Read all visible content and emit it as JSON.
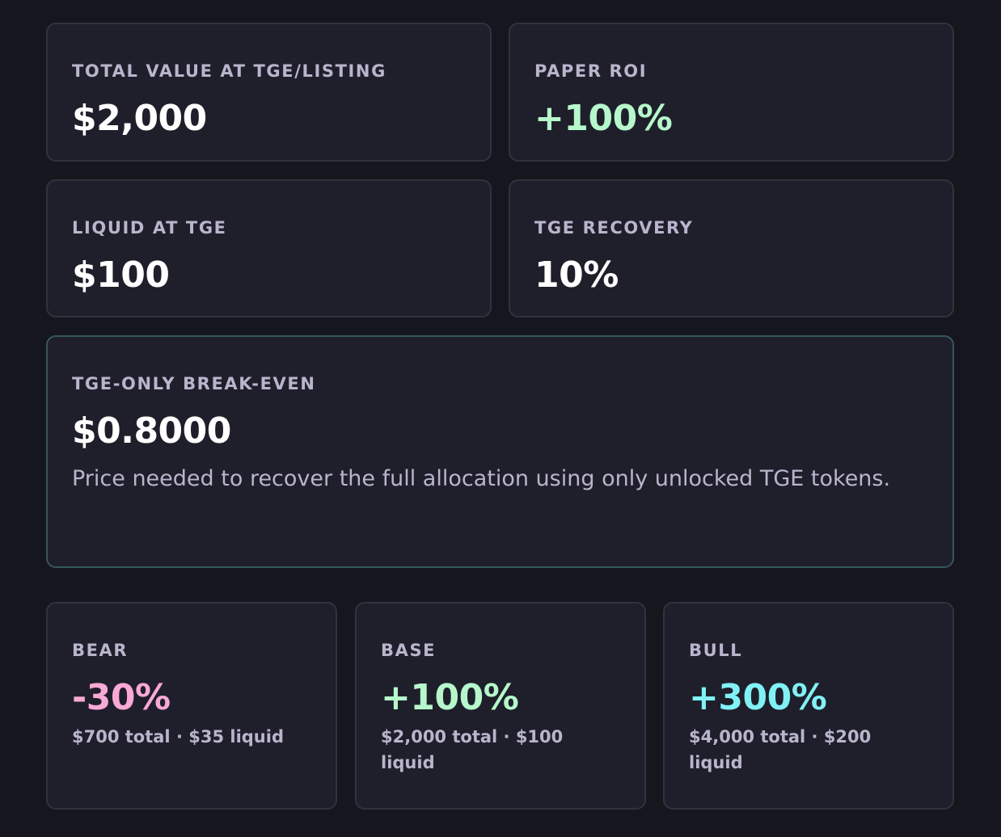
{
  "summary": [
    {
      "label": "TOTAL VALUE AT TGE/LISTING",
      "value": "$2,000"
    },
    {
      "label": "PAPER ROI",
      "value": "+100%"
    },
    {
      "label": "LIQUID AT TGE",
      "value": "$100"
    },
    {
      "label": "TGE RECOVERY",
      "value": "10%"
    }
  ],
  "break_even": {
    "label": "TGE-ONLY BREAK-EVEN",
    "value": "$0.8000",
    "description": "Price needed to recover the full allocation using only unlocked TGE tokens."
  },
  "scenarios": [
    {
      "label": "BEAR",
      "value": "-30%",
      "note": "$700 total · $35 liquid"
    },
    {
      "label": "BASE",
      "value": "+100%",
      "note": "$2,000 total · $100 liquid"
    },
    {
      "label": "BULL",
      "value": "+300%",
      "note": "$4,000 total · $200 liquid"
    }
  ]
}
